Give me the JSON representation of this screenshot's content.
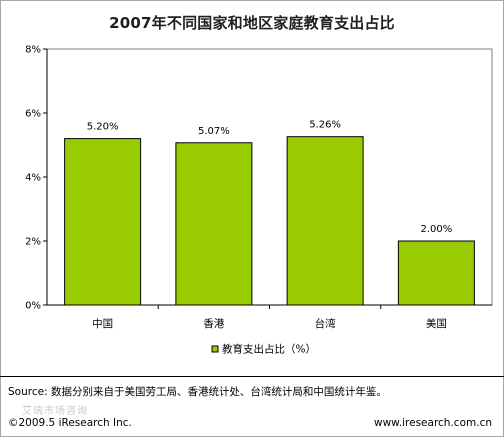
{
  "chart_data": {
    "type": "bar",
    "title": "2007年不同国家和地区家庭教育支出占比",
    "categories": [
      "中国",
      "香港",
      "台湾",
      "美国"
    ],
    "series": [
      {
        "name": "教育支出占比（%）",
        "values": [
          5.2,
          5.07,
          5.26,
          2.0
        ],
        "data_labels": [
          "5.20%",
          "5.07%",
          "5.26%",
          "2.00%"
        ],
        "color": "#99cc00"
      }
    ],
    "xlabel": "",
    "ylabel": "",
    "ylim": [
      0,
      8
    ],
    "yticks": [
      0,
      2,
      4,
      6,
      8
    ],
    "ytick_labels": [
      "0%",
      "2%",
      "4%",
      "6%",
      "8%"
    ],
    "grid": false,
    "legend_position": "bottom"
  },
  "footer": {
    "source": "Source: 数据分别来自于美国劳工局、香港统计处、台湾统计局和中国统计年鉴。",
    "watermark": "艾瑞市场咨询",
    "copyright": "©2009.5 iResearch Inc.",
    "website": "www.iresearch.com.cn"
  },
  "colors": {
    "bar_fill": "#99cc00",
    "bar_stroke": "#000000",
    "axis": "#000000",
    "plot_border": "#808080"
  }
}
